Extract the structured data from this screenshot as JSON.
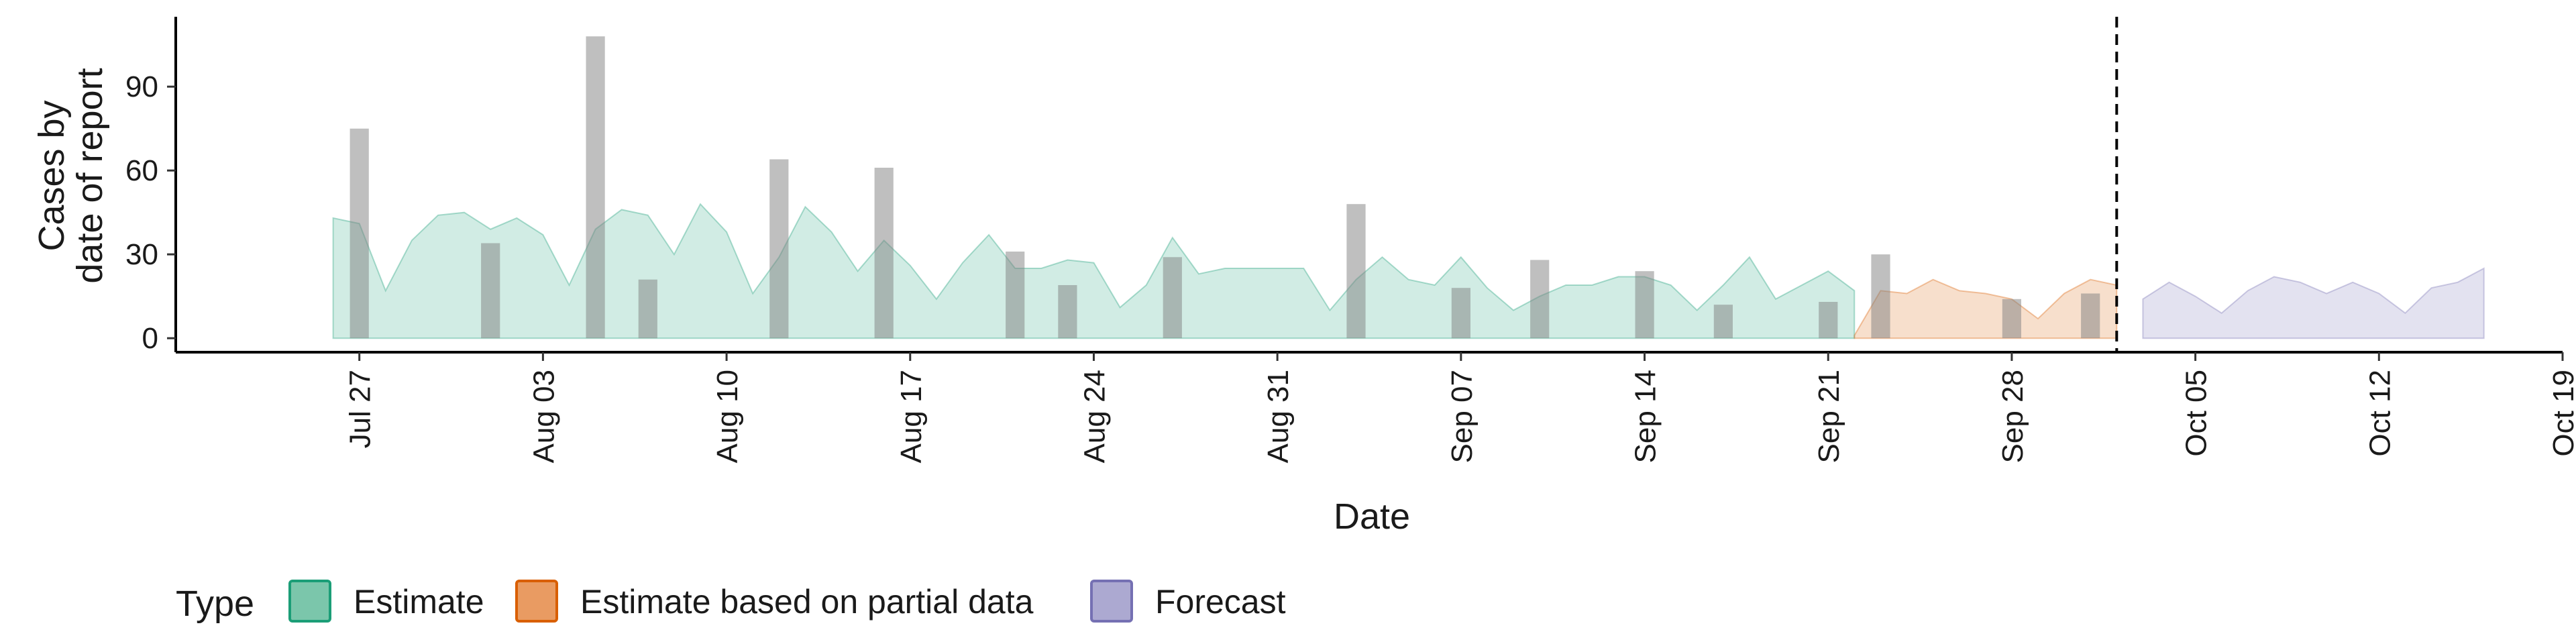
{
  "chart_data": {
    "type": "area",
    "ylabel_lines": [
      "Cases by",
      "date of report"
    ],
    "xlabel": "Date",
    "x_ticks": [
      "2020-07-27",
      "2020-08-03",
      "2020-08-10",
      "2020-08-17",
      "2020-08-24",
      "2020-08-31",
      "2020-09-07",
      "2020-09-14",
      "2020-09-21",
      "2020-09-28",
      "2020-10-05",
      "2020-10-12",
      "2020-10-19"
    ],
    "x_tick_labels": [
      "Jul 27",
      "Aug 03",
      "Aug 10",
      "Aug 17",
      "Aug 24",
      "Aug 31",
      "Sep 07",
      "Sep 14",
      "Sep 21",
      "Sep 28",
      "Oct 05",
      "Oct 12",
      "Oct 19"
    ],
    "xlim": [
      "2020-07-20",
      "2020-10-19"
    ],
    "ylim": [
      -5,
      115
    ],
    "y_ticks": [
      0,
      30,
      60,
      90
    ],
    "y_tick_labels": [
      "0",
      "30",
      "60",
      "90"
    ],
    "vline_date": "2020-10-02",
    "reported_cases": [
      {
        "date": "2020-07-27",
        "value": 75
      },
      {
        "date": "2020-08-01",
        "value": 34
      },
      {
        "date": "2020-08-05",
        "value": 108
      },
      {
        "date": "2020-08-07",
        "value": 21
      },
      {
        "date": "2020-08-12",
        "value": 64
      },
      {
        "date": "2020-08-16",
        "value": 61
      },
      {
        "date": "2020-08-21",
        "value": 31
      },
      {
        "date": "2020-08-23",
        "value": 19
      },
      {
        "date": "2020-08-27",
        "value": 29
      },
      {
        "date": "2020-09-03",
        "value": 48
      },
      {
        "date": "2020-09-07",
        "value": 18
      },
      {
        "date": "2020-09-10",
        "value": 28
      },
      {
        "date": "2020-09-14",
        "value": 24
      },
      {
        "date": "2020-09-17",
        "value": 12
      },
      {
        "date": "2020-09-21",
        "value": 13
      },
      {
        "date": "2020-09-23",
        "value": 30
      },
      {
        "date": "2020-09-28",
        "value": 14
      },
      {
        "date": "2020-10-01",
        "value": 16
      }
    ],
    "series": [
      {
        "name": "Estimate",
        "color": "#1b9e77",
        "points": [
          {
            "date": "2020-07-26",
            "value": 43
          },
          {
            "date": "2020-07-27",
            "value": 41
          },
          {
            "date": "2020-07-28",
            "value": 17
          },
          {
            "date": "2020-07-29",
            "value": 35
          },
          {
            "date": "2020-07-30",
            "value": 44
          },
          {
            "date": "2020-07-31",
            "value": 45
          },
          {
            "date": "2020-08-01",
            "value": 39
          },
          {
            "date": "2020-08-02",
            "value": 43
          },
          {
            "date": "2020-08-03",
            "value": 37
          },
          {
            "date": "2020-08-04",
            "value": 19
          },
          {
            "date": "2020-08-05",
            "value": 39
          },
          {
            "date": "2020-08-06",
            "value": 46
          },
          {
            "date": "2020-08-07",
            "value": 44
          },
          {
            "date": "2020-08-08",
            "value": 30
          },
          {
            "date": "2020-08-09",
            "value": 48
          },
          {
            "date": "2020-08-10",
            "value": 38
          },
          {
            "date": "2020-08-11",
            "value": 16
          },
          {
            "date": "2020-08-12",
            "value": 29
          },
          {
            "date": "2020-08-13",
            "value": 47
          },
          {
            "date": "2020-08-14",
            "value": 38
          },
          {
            "date": "2020-08-15",
            "value": 24
          },
          {
            "date": "2020-08-16",
            "value": 35
          },
          {
            "date": "2020-08-17",
            "value": 26
          },
          {
            "date": "2020-08-18",
            "value": 14
          },
          {
            "date": "2020-08-19",
            "value": 27
          },
          {
            "date": "2020-08-20",
            "value": 37
          },
          {
            "date": "2020-08-21",
            "value": 25
          },
          {
            "date": "2020-08-22",
            "value": 25
          },
          {
            "date": "2020-08-23",
            "value": 28
          },
          {
            "date": "2020-08-24",
            "value": 27
          },
          {
            "date": "2020-08-25",
            "value": 11
          },
          {
            "date": "2020-08-26",
            "value": 19
          },
          {
            "date": "2020-08-27",
            "value": 36
          },
          {
            "date": "2020-08-28",
            "value": 23
          },
          {
            "date": "2020-08-29",
            "value": 25
          },
          {
            "date": "2020-08-30",
            "value": 25
          },
          {
            "date": "2020-08-31",
            "value": 25
          },
          {
            "date": "2020-09-01",
            "value": 25
          },
          {
            "date": "2020-09-02",
            "value": 10
          },
          {
            "date": "2020-09-03",
            "value": 21
          },
          {
            "date": "2020-09-04",
            "value": 29
          },
          {
            "date": "2020-09-05",
            "value": 21
          },
          {
            "date": "2020-09-06",
            "value": 19
          },
          {
            "date": "2020-09-07",
            "value": 29
          },
          {
            "date": "2020-09-08",
            "value": 18
          },
          {
            "date": "2020-09-09",
            "value": 10
          },
          {
            "date": "2020-09-10",
            "value": 15
          },
          {
            "date": "2020-09-11",
            "value": 19
          },
          {
            "date": "2020-09-12",
            "value": 19
          },
          {
            "date": "2020-09-13",
            "value": 22
          },
          {
            "date": "2020-09-14",
            "value": 22
          },
          {
            "date": "2020-09-15",
            "value": 19
          },
          {
            "date": "2020-09-16",
            "value": 10
          },
          {
            "date": "2020-09-17",
            "value": 19
          },
          {
            "date": "2020-09-18",
            "value": 29
          },
          {
            "date": "2020-09-19",
            "value": 14
          },
          {
            "date": "2020-09-20",
            "value": 19
          },
          {
            "date": "2020-09-21",
            "value": 24
          },
          {
            "date": "2020-09-22",
            "value": 17
          }
        ]
      },
      {
        "name": "Estimate based on partial data",
        "color": "#d95f02",
        "points": [
          {
            "date": "2020-09-22",
            "value": 1
          },
          {
            "date": "2020-09-23",
            "value": 17
          },
          {
            "date": "2020-09-24",
            "value": 16
          },
          {
            "date": "2020-09-25",
            "value": 21
          },
          {
            "date": "2020-09-26",
            "value": 17
          },
          {
            "date": "2020-09-27",
            "value": 16
          },
          {
            "date": "2020-09-28",
            "value": 14
          },
          {
            "date": "2020-09-29",
            "value": 7
          },
          {
            "date": "2020-09-30",
            "value": 16
          },
          {
            "date": "2020-10-01",
            "value": 21
          },
          {
            "date": "2020-10-02",
            "value": 19
          }
        ]
      },
      {
        "name": "Forecast",
        "color": "#7570b3",
        "points": [
          {
            "date": "2020-10-03",
            "value": 14
          },
          {
            "date": "2020-10-04",
            "value": 20
          },
          {
            "date": "2020-10-05",
            "value": 15
          },
          {
            "date": "2020-10-06",
            "value": 9
          },
          {
            "date": "2020-10-07",
            "value": 17
          },
          {
            "date": "2020-10-08",
            "value": 22
          },
          {
            "date": "2020-10-09",
            "value": 20
          },
          {
            "date": "2020-10-10",
            "value": 16
          },
          {
            "date": "2020-10-11",
            "value": 20
          },
          {
            "date": "2020-10-12",
            "value": 16
          },
          {
            "date": "2020-10-13",
            "value": 9
          },
          {
            "date": "2020-10-14",
            "value": 18
          },
          {
            "date": "2020-10-15",
            "value": 20
          },
          {
            "date": "2020-10-16",
            "value": 25
          }
        ]
      }
    ],
    "bar_color": "#808080",
    "grid": false,
    "legend_position": "bottom"
  },
  "legend": {
    "title": "Type",
    "items": [
      {
        "label": "Estimate",
        "fill": "#7bc6ab",
        "stroke": "#1b9e77"
      },
      {
        "label": "Estimate based on partial data",
        "fill": "#e99b62",
        "stroke": "#d95f02"
      },
      {
        "label": "Forecast",
        "fill": "#aca9d1",
        "stroke": "#7570b3"
      }
    ]
  }
}
